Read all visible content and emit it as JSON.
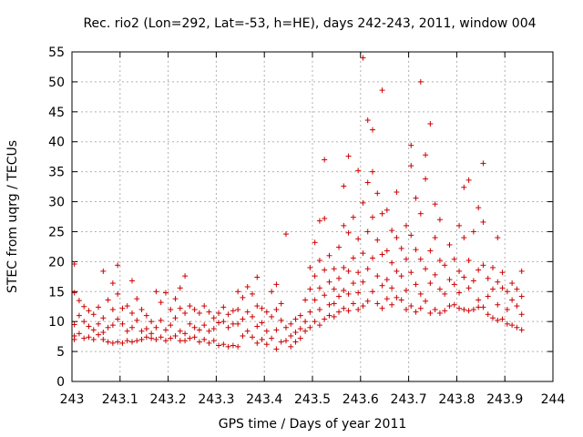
{
  "chart_data": {
    "type": "scatter",
    "title": "Rec. rio2 (Lon=292, Lat=-53, h=HE), days 242-243, 2011, window 004",
    "xlabel": "GPS time / Days of year 2011",
    "ylabel": "STEC from uqrg / TECUs",
    "xlim": [
      243,
      244
    ],
    "ylim": [
      0,
      55
    ],
    "x_ticks": [
      243,
      243.1,
      243.2,
      243.3,
      243.4,
      243.5,
      243.6,
      243.7,
      243.8,
      243.9,
      244
    ],
    "x_tick_labels": [
      "243",
      "243.1",
      "243.2",
      "243.3",
      "243.4",
      "243.5",
      "243.6",
      "243.7",
      "243.8",
      "243.9",
      "244"
    ],
    "y_ticks": [
      0,
      5,
      10,
      15,
      20,
      25,
      30,
      35,
      40,
      45,
      50,
      55
    ],
    "y_tick_labels": [
      "0",
      "5",
      "10",
      "15",
      "20",
      "25",
      "30",
      "35",
      "40",
      "45",
      "50",
      "55"
    ],
    "grid": true,
    "marker": "+",
    "color": "#cc0000",
    "points": [
      [
        243.005,
        19.6
      ],
      [
        243.005,
        14.8
      ],
      [
        243.005,
        9.5
      ],
      [
        243.005,
        7.6
      ],
      [
        243.005,
        7.0
      ],
      [
        243.015,
        13.5
      ],
      [
        243.015,
        11.0
      ],
      [
        243.015,
        8.0
      ],
      [
        243.025,
        12.5
      ],
      [
        243.025,
        10.0
      ],
      [
        243.025,
        7.2
      ],
      [
        243.035,
        11.8
      ],
      [
        243.035,
        9.2
      ],
      [
        243.035,
        7.4
      ],
      [
        243.045,
        11.2
      ],
      [
        243.045,
        8.6
      ],
      [
        243.045,
        7.0
      ],
      [
        243.055,
        12.4
      ],
      [
        243.055,
        9.6
      ],
      [
        243.055,
        7.8
      ],
      [
        243.065,
        18.4
      ],
      [
        243.065,
        10.6
      ],
      [
        243.065,
        8.2
      ],
      [
        243.065,
        7.0
      ],
      [
        243.075,
        13.6
      ],
      [
        243.075,
        9.0
      ],
      [
        243.075,
        6.6
      ],
      [
        243.085,
        16.4
      ],
      [
        243.085,
        12.0
      ],
      [
        243.085,
        9.4
      ],
      [
        243.085,
        6.4
      ],
      [
        243.095,
        19.4
      ],
      [
        243.095,
        14.6
      ],
      [
        243.095,
        10.4
      ],
      [
        243.095,
        6.6
      ],
      [
        243.105,
        12.2
      ],
      [
        243.105,
        9.6
      ],
      [
        243.105,
        6.4
      ],
      [
        243.115,
        12.6
      ],
      [
        243.115,
        8.4
      ],
      [
        243.115,
        6.8
      ],
      [
        243.125,
        16.8
      ],
      [
        243.125,
        11.4
      ],
      [
        243.125,
        9.0
      ],
      [
        243.125,
        6.6
      ],
      [
        243.135,
        13.8
      ],
      [
        243.135,
        10.2
      ],
      [
        243.135,
        6.8
      ],
      [
        243.145,
        12.0
      ],
      [
        243.145,
        8.4
      ],
      [
        243.145,
        7.0
      ],
      [
        243.155,
        11.0
      ],
      [
        243.155,
        8.8
      ],
      [
        243.155,
        7.4
      ],
      [
        243.165,
        10.0
      ],
      [
        243.165,
        8.0
      ],
      [
        243.165,
        7.2
      ],
      [
        243.175,
        15.0
      ],
      [
        243.175,
        9.0
      ],
      [
        243.175,
        7.0
      ],
      [
        243.185,
        13.2
      ],
      [
        243.185,
        10.2
      ],
      [
        243.185,
        7.4
      ],
      [
        243.195,
        14.8
      ],
      [
        243.195,
        8.6
      ],
      [
        243.195,
        6.8
      ],
      [
        243.205,
        12.0
      ],
      [
        243.205,
        9.4
      ],
      [
        243.205,
        7.2
      ],
      [
        243.215,
        13.8
      ],
      [
        243.215,
        10.6
      ],
      [
        243.215,
        7.6
      ],
      [
        243.225,
        15.6
      ],
      [
        243.225,
        12.2
      ],
      [
        243.225,
        8.4
      ],
      [
        243.225,
        6.8
      ],
      [
        243.235,
        17.6
      ],
      [
        243.235,
        11.4
      ],
      [
        243.235,
        8.0
      ],
      [
        243.235,
        6.8
      ],
      [
        243.245,
        12.6
      ],
      [
        243.245,
        9.6
      ],
      [
        243.245,
        7.2
      ],
      [
        243.255,
        12.0
      ],
      [
        243.255,
        9.0
      ],
      [
        243.255,
        7.4
      ],
      [
        243.265,
        11.4
      ],
      [
        243.265,
        8.6
      ],
      [
        243.265,
        6.6
      ],
      [
        243.275,
        12.6
      ],
      [
        243.275,
        9.4
      ],
      [
        243.275,
        7.0
      ],
      [
        243.285,
        11.6
      ],
      [
        243.285,
        8.4
      ],
      [
        243.285,
        6.4
      ],
      [
        243.295,
        10.6
      ],
      [
        243.295,
        8.8
      ],
      [
        243.295,
        6.8
      ],
      [
        243.305,
        11.4
      ],
      [
        243.305,
        9.8
      ],
      [
        243.305,
        6.0
      ],
      [
        243.315,
        12.4
      ],
      [
        243.315,
        10.0
      ],
      [
        243.315,
        6.2
      ],
      [
        243.325,
        11.2
      ],
      [
        243.325,
        9.0
      ],
      [
        243.325,
        5.8
      ],
      [
        243.335,
        11.8
      ],
      [
        243.335,
        9.6
      ],
      [
        243.335,
        6.0
      ],
      [
        243.345,
        15.0
      ],
      [
        243.345,
        12.0
      ],
      [
        243.345,
        9.6
      ],
      [
        243.345,
        5.8
      ],
      [
        243.355,
        14.0
      ],
      [
        243.355,
        10.4
      ],
      [
        243.355,
        7.6
      ],
      [
        243.365,
        15.8
      ],
      [
        243.365,
        11.6
      ],
      [
        243.365,
        8.4
      ],
      [
        243.375,
        14.6
      ],
      [
        243.375,
        10.8
      ],
      [
        243.375,
        7.4
      ],
      [
        243.385,
        17.4
      ],
      [
        243.385,
        12.6
      ],
      [
        243.385,
        9.2
      ],
      [
        243.385,
        6.4
      ],
      [
        243.395,
        12.2
      ],
      [
        243.395,
        9.8
      ],
      [
        243.395,
        7.0
      ],
      [
        243.405,
        11.6
      ],
      [
        243.405,
        8.4
      ],
      [
        243.405,
        6.2
      ],
      [
        243.415,
        15.0
      ],
      [
        243.415,
        10.8
      ],
      [
        243.415,
        7.2
      ],
      [
        243.425,
        16.2
      ],
      [
        243.425,
        12.0
      ],
      [
        243.425,
        8.6
      ],
      [
        243.425,
        5.4
      ],
      [
        243.435,
        13.0
      ],
      [
        243.435,
        10.2
      ],
      [
        243.435,
        6.6
      ],
      [
        243.445,
        24.6
      ],
      [
        243.445,
        9.0
      ],
      [
        243.445,
        6.8
      ],
      [
        243.455,
        9.6
      ],
      [
        243.455,
        7.6
      ],
      [
        243.455,
        5.8
      ],
      [
        243.465,
        10.4
      ],
      [
        243.465,
        8.2
      ],
      [
        243.465,
        6.6
      ],
      [
        243.475,
        11.0
      ],
      [
        243.475,
        8.8
      ],
      [
        243.475,
        7.2
      ],
      [
        243.485,
        13.6
      ],
      [
        243.485,
        10.0
      ],
      [
        243.485,
        8.4
      ],
      [
        243.495,
        19.0
      ],
      [
        243.495,
        15.4
      ],
      [
        243.495,
        11.6
      ],
      [
        243.495,
        9.0
      ],
      [
        243.505,
        23.2
      ],
      [
        243.505,
        17.6
      ],
      [
        243.505,
        13.6
      ],
      [
        243.505,
        10.0
      ],
      [
        243.515,
        26.8
      ],
      [
        243.515,
        20.2
      ],
      [
        243.515,
        15.6
      ],
      [
        243.515,
        12.0
      ],
      [
        243.515,
        9.4
      ],
      [
        243.525,
        37.0
      ],
      [
        243.525,
        27.2
      ],
      [
        243.525,
        18.6
      ],
      [
        243.525,
        14.4
      ],
      [
        243.525,
        10.4
      ],
      [
        243.535,
        21.0
      ],
      [
        243.535,
        16.6
      ],
      [
        243.535,
        12.8
      ],
      [
        243.535,
        11.0
      ],
      [
        243.545,
        18.8
      ],
      [
        243.545,
        15.4
      ],
      [
        243.545,
        13.0
      ],
      [
        243.545,
        10.8
      ],
      [
        243.555,
        22.4
      ],
      [
        243.555,
        17.2
      ],
      [
        243.555,
        14.2
      ],
      [
        243.555,
        11.6
      ],
      [
        243.565,
        32.6
      ],
      [
        243.565,
        26.0
      ],
      [
        243.565,
        19.0
      ],
      [
        243.565,
        15.2
      ],
      [
        243.565,
        12.2
      ],
      [
        243.575,
        37.6
      ],
      [
        243.575,
        24.8
      ],
      [
        243.575,
        18.4
      ],
      [
        243.575,
        14.6
      ],
      [
        243.575,
        11.8
      ],
      [
        243.585,
        27.4
      ],
      [
        243.585,
        20.6
      ],
      [
        243.585,
        16.4
      ],
      [
        243.585,
        13.0
      ],
      [
        243.595,
        35.2
      ],
      [
        243.595,
        23.8
      ],
      [
        243.595,
        18.2
      ],
      [
        243.595,
        14.8
      ],
      [
        243.595,
        12.0
      ],
      [
        243.605,
        54.0
      ],
      [
        243.605,
        29.8
      ],
      [
        243.605,
        21.4
      ],
      [
        243.605,
        16.6
      ],
      [
        243.605,
        12.6
      ],
      [
        243.615,
        43.6
      ],
      [
        243.615,
        33.2
      ],
      [
        243.615,
        25.0
      ],
      [
        243.615,
        18.8
      ],
      [
        243.615,
        13.4
      ],
      [
        243.625,
        42.0
      ],
      [
        243.625,
        35.0
      ],
      [
        243.625,
        27.4
      ],
      [
        243.625,
        20.6
      ],
      [
        243.625,
        15.0
      ],
      [
        243.635,
        31.4
      ],
      [
        243.635,
        23.6
      ],
      [
        243.635,
        17.6
      ],
      [
        243.635,
        13.0
      ],
      [
        243.645,
        48.6
      ],
      [
        243.645,
        28.0
      ],
      [
        243.645,
        21.2
      ],
      [
        243.645,
        16.0
      ],
      [
        243.645,
        12.2
      ],
      [
        243.655,
        28.6
      ],
      [
        243.655,
        21.8
      ],
      [
        243.655,
        17.0
      ],
      [
        243.655,
        13.8
      ],
      [
        243.665,
        25.2
      ],
      [
        243.665,
        19.8
      ],
      [
        243.665,
        15.6
      ],
      [
        243.665,
        12.8
      ],
      [
        243.675,
        31.6
      ],
      [
        243.675,
        24.0
      ],
      [
        243.675,
        18.4
      ],
      [
        243.675,
        14.0
      ],
      [
        243.685,
        22.2
      ],
      [
        243.685,
        17.6
      ],
      [
        243.685,
        13.6
      ],
      [
        243.695,
        26.0
      ],
      [
        243.695,
        20.4
      ],
      [
        243.695,
        15.2
      ],
      [
        243.695,
        12.0
      ],
      [
        243.705,
        39.4
      ],
      [
        243.705,
        36.0
      ],
      [
        243.705,
        24.4
      ],
      [
        243.705,
        18.2
      ],
      [
        243.705,
        12.6
      ],
      [
        243.715,
        30.6
      ],
      [
        243.715,
        22.0
      ],
      [
        243.715,
        16.2
      ],
      [
        243.715,
        11.6
      ],
      [
        243.725,
        50.0
      ],
      [
        243.725,
        28.0
      ],
      [
        243.725,
        20.4
      ],
      [
        243.725,
        14.6
      ],
      [
        243.725,
        12.2
      ],
      [
        243.735,
        37.8
      ],
      [
        243.735,
        33.8
      ],
      [
        243.735,
        18.8
      ],
      [
        243.735,
        13.4
      ],
      [
        243.745,
        43.0
      ],
      [
        243.745,
        21.8
      ],
      [
        243.745,
        16.4
      ],
      [
        243.745,
        11.4
      ],
      [
        243.755,
        29.6
      ],
      [
        243.755,
        24.0
      ],
      [
        243.755,
        17.8
      ],
      [
        243.755,
        12.0
      ],
      [
        243.765,
        27.0
      ],
      [
        243.765,
        20.2
      ],
      [
        243.765,
        15.4
      ],
      [
        243.765,
        11.4
      ],
      [
        243.775,
        19.4
      ],
      [
        243.775,
        14.6
      ],
      [
        243.775,
        11.8
      ],
      [
        243.785,
        22.8
      ],
      [
        243.785,
        17.0
      ],
      [
        243.785,
        12.6
      ],
      [
        243.795,
        20.4
      ],
      [
        243.795,
        16.2
      ],
      [
        243.795,
        12.8
      ],
      [
        243.805,
        26.0
      ],
      [
        243.805,
        18.4
      ],
      [
        243.805,
        14.8
      ],
      [
        243.805,
        12.2
      ],
      [
        243.815,
        32.4
      ],
      [
        243.815,
        24.0
      ],
      [
        243.815,
        17.4
      ],
      [
        243.815,
        12.0
      ],
      [
        243.825,
        33.6
      ],
      [
        243.825,
        20.2
      ],
      [
        243.825,
        15.6
      ],
      [
        243.825,
        11.8
      ],
      [
        243.835,
        25.0
      ],
      [
        243.835,
        16.8
      ],
      [
        243.835,
        12.0
      ],
      [
        243.845,
        29.0
      ],
      [
        243.845,
        18.6
      ],
      [
        243.845,
        13.6
      ],
      [
        243.845,
        12.4
      ],
      [
        243.855,
        36.4
      ],
      [
        243.855,
        26.6
      ],
      [
        243.855,
        19.4
      ],
      [
        243.855,
        12.4
      ],
      [
        243.865,
        17.2
      ],
      [
        243.865,
        14.2
      ],
      [
        243.865,
        11.2
      ],
      [
        243.875,
        19.0
      ],
      [
        243.875,
        15.4
      ],
      [
        243.875,
        10.6
      ],
      [
        243.885,
        24.0
      ],
      [
        243.885,
        16.6
      ],
      [
        243.885,
        12.8
      ],
      [
        243.885,
        10.2
      ],
      [
        243.895,
        18.2
      ],
      [
        243.895,
        15.6
      ],
      [
        243.895,
        10.4
      ],
      [
        243.905,
        15.0
      ],
      [
        243.905,
        12.0
      ],
      [
        243.905,
        9.6
      ],
      [
        243.915,
        16.4
      ],
      [
        243.915,
        13.6
      ],
      [
        243.915,
        9.4
      ],
      [
        243.925,
        15.4
      ],
      [
        243.925,
        12.6
      ],
      [
        243.925,
        9.0
      ],
      [
        243.935,
        18.4
      ],
      [
        243.935,
        14.2
      ],
      [
        243.935,
        11.2
      ],
      [
        243.935,
        8.6
      ]
    ]
  }
}
